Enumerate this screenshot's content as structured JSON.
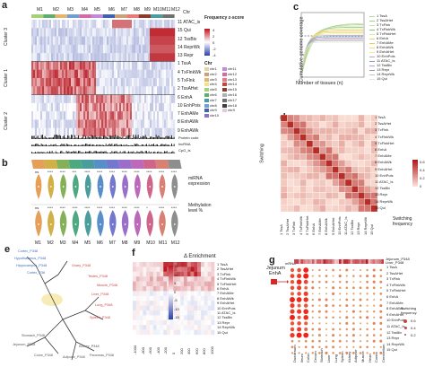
{
  "panels": {
    "a": "a",
    "b": "b",
    "c": "c",
    "d": "d",
    "e": "e",
    "f": "f",
    "g": "g"
  },
  "panel_a": {
    "modules": [
      "M1",
      "M2",
      "M3",
      "M4",
      "M5",
      "M6",
      "M7",
      "M8",
      "M9",
      "M10",
      "M11",
      "M12"
    ],
    "top_labels": [
      "M1",
      "M2",
      "M3",
      "M4",
      "M5",
      "M6",
      "M7",
      "M8",
      "M9",
      "M10",
      "M11",
      "M12"
    ],
    "chr_label": "Chr",
    "cluster_labels": [
      "Cluster 3",
      "Cluster 1",
      "Cluster 2"
    ],
    "states": [
      "11 ATAC_is",
      "15 Qui",
      "12 TssBiv",
      "14 ReprWk",
      "13 Repr",
      "1 TssA",
      "4 TxFlnkWk",
      "5 TxFlnk",
      "2 TssAHet",
      "6 EnhA",
      "10 EnhPois",
      "7 EnhAMe",
      "8 EnhAWk",
      "9 EnhAWk"
    ],
    "legend_title": "Frequency\nz-score",
    "legend_ticks": [
      "4",
      "2",
      "0",
      "-2",
      "-4"
    ],
    "chr_title": "Chr",
    "chromosomes": [
      "chr1",
      "chr2",
      "chr3",
      "chr4",
      "chr5",
      "chr6",
      "chr7",
      "chr8",
      "chr9",
      "chr10",
      "chr11",
      "chr12",
      "chr13",
      "chr14",
      "chr15",
      "chr16",
      "chr17",
      "chr18",
      "chrX"
    ],
    "chr_colors": [
      "#e5d0a8",
      "#c9a27a",
      "#e8b46a",
      "#f1e18a",
      "#a6cf7a",
      "#5fae6e",
      "#4c9b9e",
      "#6f9fd1",
      "#3f62b0",
      "#8c6fc7",
      "#c18ad8",
      "#d46aa1",
      "#e87a7a",
      "#c44545",
      "#8a3b2b",
      "#b0b0b0",
      "#707070",
      "#3e3e3e",
      "#e7c7df"
    ],
    "track_labels": [
      "Protein code",
      "lncRNA",
      "CpG_Is"
    ]
  },
  "panel_b": {
    "labels": [
      "M1",
      "M2",
      "M3",
      "M4",
      "M5",
      "M6",
      "M7",
      "M8",
      "M9",
      "M10",
      "M11",
      "M12"
    ],
    "mirna_label": "miRNA\nexpression",
    "methylation_label": "Methylation\nlevel %",
    "mirna_sig": [
      "ns",
      "****",
      "****",
      "***",
      "****",
      "****",
      "****",
      "****",
      "****",
      "****",
      "****",
      "****"
    ],
    "meth_sig": [
      "ns",
      "****",
      "****",
      "****",
      "****",
      "****",
      "****",
      "****",
      "****",
      "*",
      "****",
      "****"
    ],
    "violin_colors": [
      "#e08e3c",
      "#c9a227",
      "#6fa33a",
      "#2f9a6b",
      "#2c8b8b",
      "#3b7bbf",
      "#5a5fc4",
      "#8a55c1",
      "#b04fae",
      "#c64b78",
      "#d16a5c",
      "#7a7a7a"
    ]
  },
  "chart_data": {
    "type": "line",
    "xlabel": "Number of tissues (n)",
    "ylabel": "Cumulative genome coverage",
    "series": [
      {
        "name": "1 TssA",
        "color": "#b9d8a0"
      },
      {
        "name": "2 TssAHet",
        "color": "#9fd07a"
      },
      {
        "name": "3 TxFlnk",
        "color": "#c7e1a8"
      },
      {
        "name": "4 TxFlnkWk",
        "color": "#8cc27a"
      },
      {
        "name": "5 TxFlnkHet",
        "color": "#d4e6b5"
      },
      {
        "name": "6 EnhA",
        "color": "#e8d36b"
      },
      {
        "name": "7 EnhAMe",
        "color": "#f0c95a"
      },
      {
        "name": "8 EnhAWk",
        "color": "#e6e07a"
      },
      {
        "name": "9 EnhAHet",
        "color": "#f2e89a"
      },
      {
        "name": "10 EnhPois",
        "color": "#b5a9d8"
      },
      {
        "name": "11 ATAC_Is",
        "color": "#7aa4d6"
      },
      {
        "name": "12 TssBiv",
        "color": "#c9a0c9"
      },
      {
        "name": "13 Repr",
        "color": "#9a9a9a"
      },
      {
        "name": "14 ReprWk",
        "color": "#c2c2c2"
      },
      {
        "name": "15 Qui",
        "color": "#e3e3e3"
      }
    ]
  },
  "panel_d": {
    "labels": [
      "1 TssA",
      "2 TssAHet",
      "3 TxFlnk",
      "4 TxFlnkWk",
      "5 TxFlnkHet",
      "6 EnhA",
      "7 EnhAMe",
      "8 EnhAWk",
      "9 EnhAHet",
      "10 EnhPois",
      "11 ATAC_Is",
      "12 TssBiv",
      "13 Repr",
      "14 ReprWk",
      "15 Qui"
    ],
    "ylabel": "Switching",
    "legend_title": "Switching\nfrequency",
    "legend_ticks": [
      "0.6",
      "0.4",
      "0.2",
      "0"
    ]
  },
  "panel_e": {
    "labels": [
      "Cortex_P348",
      "Hypothalamus_P348",
      "Hippocampus_P348",
      "Cortex_P36",
      "Ovary_P348",
      "Testes_P348",
      "Muscle_P348",
      "Liver_P348",
      "Lung_P348",
      "Spleen_P348",
      "Stomach_P348",
      "Jejunum_P348",
      "Colon_P348",
      "Adipose_P348",
      "Kidney_P348",
      "Pancreas_P348"
    ],
    "colors": [
      "#3b6fc0",
      "#3b6fc0",
      "#3b6fc0",
      "#3b6fc0",
      "#d43f3f",
      "#d43f3f",
      "#d43f3f",
      "#d43f3f",
      "#d43f3f",
      "#d43f3f",
      "#555555",
      "#555555",
      "#555555",
      "#555555",
      "#555555",
      "#555555"
    ]
  },
  "panel_f": {
    "title": "Δ Enrichment",
    "labels": [
      "1 TssA",
      "2 TssAHet",
      "3 TxFlnk",
      "4 TxFlnkWk",
      "5 TxFlnkHet",
      "6 EnhA",
      "7 EnhAMe",
      "8 EnhAWk",
      "9 EnhAHet",
      "10 EnhPois",
      "11 ATAC_Is",
      "12 TssBiv",
      "13 Repr",
      "14 ReprWk",
      "15 Qui"
    ],
    "x_ticks": [
      "-1000",
      "-800",
      "-600",
      "-400",
      "-200",
      "0",
      "200",
      "400",
      "600",
      "800",
      "1000"
    ],
    "legend_ticks": [
      "15",
      "10",
      "5",
      "0",
      "-5",
      "-10",
      "-15"
    ]
  },
  "panel_g": {
    "mirna_label": "mRNA",
    "jejunum_label": "Jejunum",
    "enha_label": "EnhA",
    "legend_top": "Jejunum_P348\nLiver_P348",
    "states": [
      "1 TssA",
      "2 TssAHet",
      "3 TxFlnk",
      "4 TxFlnkWk",
      "5 TxFlnkHet",
      "6 EnhA",
      "7 EnhAMe",
      "8 EnhAWk",
      "9 EnhAHet",
      "10 EnhPois",
      "11 ATAC_Is",
      "12 TssBiv",
      "13 Repr",
      "14 ReprWk",
      "15 Qui"
    ],
    "tissues": [
      "Duodenum",
      "Ileum",
      "Colon",
      "Cecum",
      "Stomach",
      "Liver",
      "Lung",
      "Spleen",
      "Kidney",
      "Adipose",
      "Muscle",
      "Heart",
      "Cortex",
      "Cerebellum"
    ],
    "legend_title": "Switching\nfrequency",
    "legend_ticks": [
      "0.6",
      "0.4",
      "0.2"
    ]
  }
}
